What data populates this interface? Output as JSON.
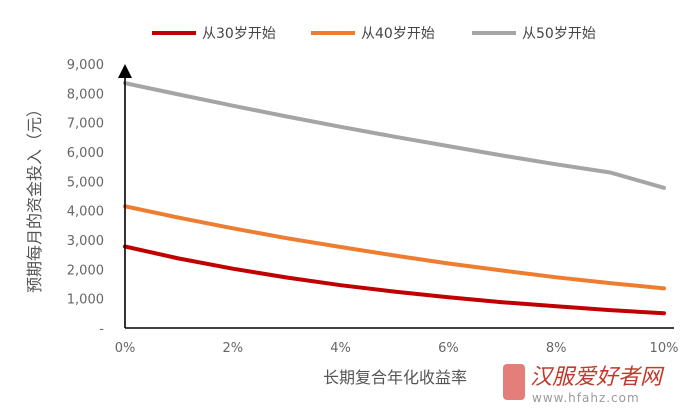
{
  "chart_data": {
    "type": "line",
    "title": "",
    "xlabel": "长期复合年化收益率",
    "ylabel": "预期每月的资金投入（元）",
    "x_ticks": [
      "0%",
      "2%",
      "4%",
      "6%",
      "8%",
      "10%"
    ],
    "xlim": [
      0,
      10
    ],
    "y_ticks": [
      "-",
      "1,000",
      "2,000",
      "3,000",
      "4,000",
      "5,000",
      "6,000",
      "7,000",
      "8,000",
      "9,000"
    ],
    "ylim": [
      0,
      9000
    ],
    "legend_position": "top",
    "grid": false,
    "x": [
      0,
      1,
      2,
      3,
      4,
      5,
      6,
      7,
      8,
      9,
      10
    ],
    "series": [
      {
        "name": "从30岁开始",
        "color": "#c00000",
        "values": [
          2780,
          2370,
          2020,
          1720,
          1460,
          1240,
          1050,
          880,
          740,
          610,
          500
        ]
      },
      {
        "name": "从40岁开始",
        "color": "#ed7d31",
        "values": [
          4150,
          3760,
          3400,
          3060,
          2760,
          2470,
          2200,
          1960,
          1730,
          1530,
          1350
        ]
      },
      {
        "name": "从50岁开始",
        "color": "#a5a5a5",
        "values": [
          8350,
          7960,
          7580,
          7210,
          6860,
          6520,
          6200,
          5880,
          5580,
          5300,
          4780
        ]
      }
    ]
  },
  "watermark": {
    "name": "汉服爱好者网",
    "url": "www.hfahz.com"
  }
}
